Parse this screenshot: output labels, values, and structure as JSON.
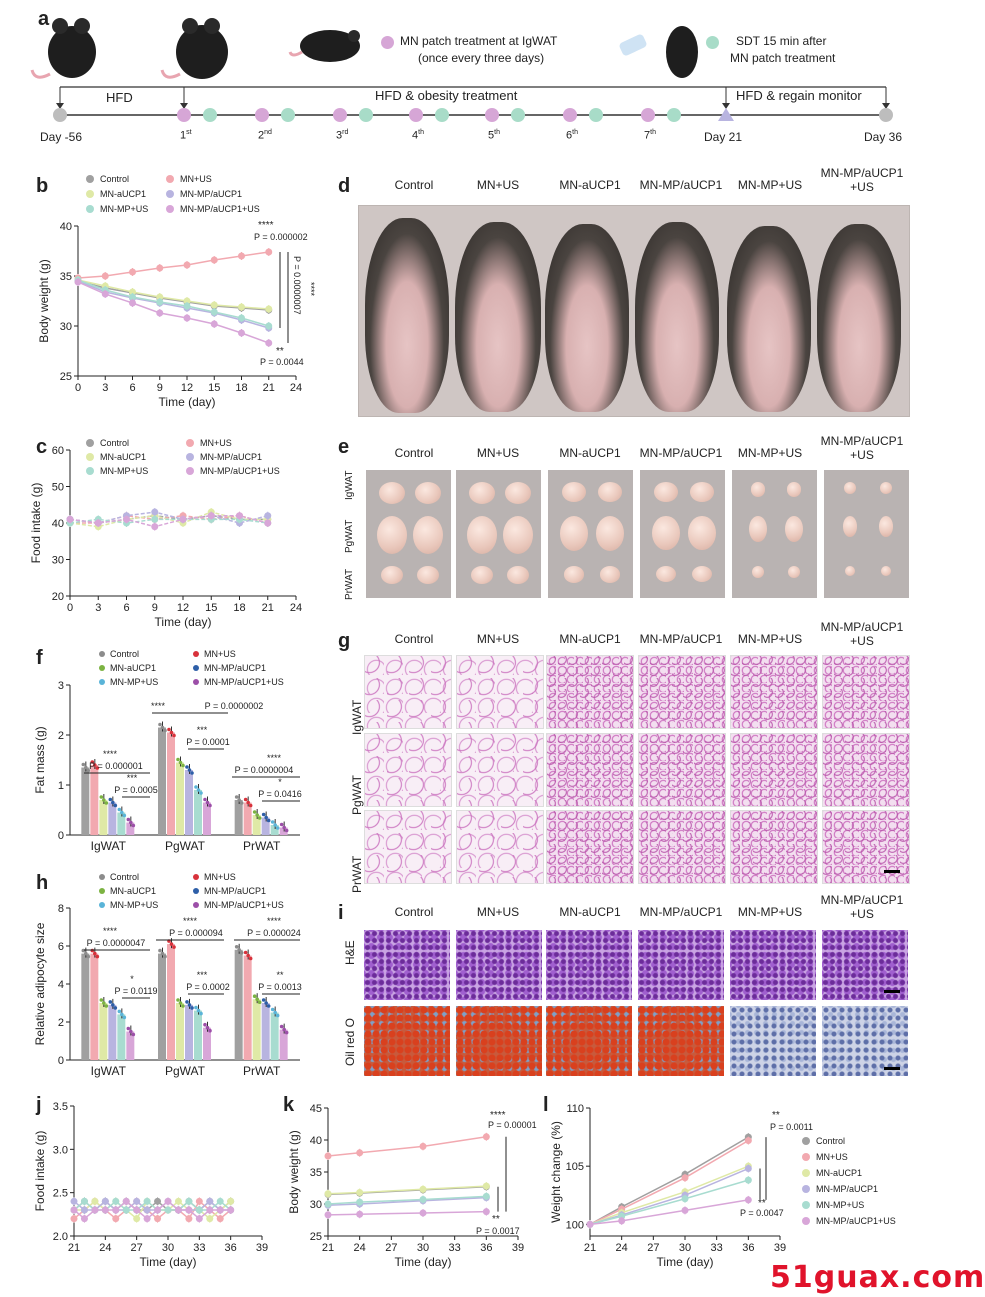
{
  "panels": {
    "a": "a",
    "b": "b",
    "c": "c",
    "d": "d",
    "e": "e",
    "f": "f",
    "g": "g",
    "h": "h",
    "i": "i",
    "j": "j",
    "k": "k",
    "l": "l"
  },
  "timeline": {
    "legend_patch": "MN patch treatment at IgWAT",
    "legend_patch2": "(once every three days)",
    "legend_sdt": "SDT 15 min after",
    "legend_sdt2": "MN patch treatment",
    "hfd": "HFD",
    "treatment": "HFD & obesity treatment",
    "regain": "HFD & regain monitor",
    "day_start": "Day -56",
    "day21": "Day 21",
    "day36": "Day 36",
    "doses": [
      "1",
      "2",
      "3",
      "4",
      "5",
      "6",
      "7"
    ],
    "dose_sups": [
      "st",
      "nd",
      "rd",
      "th",
      "th",
      "th",
      "th"
    ],
    "colors": {
      "patch": "#d6a6d6",
      "sdt": "#a8dcc8",
      "gray": "#bdbdbd"
    }
  },
  "groups": [
    "Control",
    "MN+US",
    "MN-aUCP1",
    "MN-MP/aUCP1",
    "MN-MP+US",
    "MN-MP/aUCP1+US"
  ],
  "group_labels_top": [
    "Control",
    "MN+US",
    "MN-aUCP1",
    "MN-MP/aUCP1",
    "MN-MP+US",
    "MN-MP/aUCP1"
  ],
  "group_label_last_line2": "+US",
  "colors": {
    "Control": "#a0a0a0",
    "MN+US": "#f2a9b0",
    "MN-aUCP1": "#dfe9a6",
    "MN-MP/aUCP1": "#b8b4e0",
    "MN-MP+US": "#a8dcd0",
    "MN-MP/aUCP1+US": "#d8a6d8"
  },
  "bar_colors": {
    "Control": "#8c8c8c",
    "MN+US": "#d8323b",
    "MN-aUCP1": "#7cb342",
    "MN-MP/aUCP1": "#2e5fa8",
    "MN-MP+US": "#5ab4d8",
    "MN-MP/aUCP1+US": "#9c4fa8"
  },
  "fat_labels": [
    "IgWAT",
    "PgWAT",
    "PrWAT"
  ],
  "scalebar_note": "",
  "stain_labels": [
    "H&E",
    "Oil red O"
  ],
  "chart_data": [
    {
      "id": "b",
      "type": "line",
      "xlabel": "Time (day)",
      "ylabel": "Body weight (g)",
      "x": [
        0,
        3,
        6,
        9,
        12,
        15,
        18,
        21
      ],
      "xticks": [
        0,
        3,
        6,
        9,
        12,
        15,
        18,
        21,
        24
      ],
      "yticks": [
        25,
        30,
        35,
        40
      ],
      "ylim": [
        25,
        40
      ],
      "xlim": [
        0,
        24
      ],
      "series": [
        {
          "name": "Control",
          "values": [
            34.5,
            33.8,
            33.3,
            32.8,
            32.4,
            32.0,
            31.8,
            31.6
          ]
        },
        {
          "name": "MN+US",
          "values": [
            34.8,
            35.0,
            35.4,
            35.8,
            36.1,
            36.6,
            37.0,
            37.4
          ]
        },
        {
          "name": "MN-aUCP1",
          "values": [
            34.6,
            34.0,
            33.4,
            32.9,
            32.5,
            32.1,
            31.9,
            31.7
          ]
        },
        {
          "name": "MN-MP/aUCP1",
          "values": [
            34.5,
            33.4,
            32.8,
            32.3,
            31.8,
            31.3,
            30.6,
            29.8
          ]
        },
        {
          "name": "MN-MP+US",
          "values": [
            34.6,
            33.6,
            32.9,
            32.4,
            32.0,
            31.4,
            30.8,
            30.0
          ]
        },
        {
          "name": "MN-MP/aUCP1+US",
          "values": [
            34.4,
            33.2,
            32.3,
            31.3,
            30.8,
            30.2,
            29.3,
            28.3
          ]
        }
      ],
      "annotations": [
        "****",
        "P = 0.000002",
        "P = 0.0000007",
        "****",
        "**",
        "P = 0.0044"
      ]
    },
    {
      "id": "c",
      "type": "line",
      "xlabel": "Time (day)",
      "ylabel": "Food intake (g)",
      "x": [
        0,
        3,
        6,
        9,
        12,
        15,
        18,
        21
      ],
      "xticks": [
        0,
        3,
        6,
        9,
        12,
        15,
        18,
        21,
        24
      ],
      "yticks": [
        20,
        30,
        40,
        50,
        60
      ],
      "ylim": [
        20,
        60
      ],
      "xlim": [
        0,
        24
      ],
      "series": [
        {
          "name": "Control",
          "values": [
            41,
            40,
            41,
            42,
            41,
            42,
            41,
            41
          ]
        },
        {
          "name": "MN+US",
          "values": [
            40,
            40,
            42,
            41,
            42,
            41,
            42,
            40
          ]
        },
        {
          "name": "MN-aUCP1",
          "values": [
            40,
            39,
            41,
            42,
            40,
            43,
            41,
            41
          ]
        },
        {
          "name": "MN-MP/aUCP1",
          "values": [
            41,
            40,
            42,
            43,
            41,
            42,
            40,
            42
          ]
        },
        {
          "name": "MN-MP+US",
          "values": [
            40,
            41,
            40,
            41,
            41,
            41,
            41,
            40
          ]
        },
        {
          "name": "MN-MP/aUCP1+US",
          "values": [
            41,
            40,
            41,
            39,
            41,
            42,
            42,
            40
          ]
        }
      ]
    },
    {
      "id": "f",
      "type": "bar",
      "ylabel": "Fat mass (g)",
      "categories": [
        "IgWAT",
        "PgWAT",
        "PrWAT"
      ],
      "yticks": [
        0,
        1,
        2,
        3
      ],
      "ylim": [
        0,
        3
      ],
      "series": [
        {
          "name": "Control",
          "values": [
            1.35,
            2.15,
            0.7
          ]
        },
        {
          "name": "MN+US",
          "values": [
            1.4,
            2.05,
            0.65
          ]
        },
        {
          "name": "MN-aUCP1",
          "values": [
            0.7,
            1.45,
            0.4
          ]
        },
        {
          "name": "MN-MP/aUCP1",
          "values": [
            0.65,
            1.3,
            0.35
          ]
        },
        {
          "name": "MN-MP+US",
          "values": [
            0.45,
            0.9,
            0.2
          ]
        },
        {
          "name": "MN-MP/aUCP1+US",
          "values": [
            0.25,
            0.65,
            0.15
          ]
        }
      ],
      "annotations": [
        "****",
        "P = 0.000001",
        "***",
        "P = 0.0005",
        "****",
        "P = 0.0000002",
        "***",
        "P = 0.0001",
        "****",
        "P = 0.0000004",
        "*",
        "P = 0.0416"
      ]
    },
    {
      "id": "h",
      "type": "bar",
      "ylabel": "Relative adipocyte size",
      "categories": [
        "IgWAT",
        "PgWAT",
        "PrWAT"
      ],
      "yticks": [
        0,
        2,
        4,
        6,
        8
      ],
      "ylim": [
        0,
        8
      ],
      "series": [
        {
          "name": "Control",
          "values": [
            5.6,
            5.6,
            5.8
          ]
        },
        {
          "name": "MN+US",
          "values": [
            5.6,
            6.1,
            5.5
          ]
        },
        {
          "name": "MN-aUCP1",
          "values": [
            3.0,
            3.0,
            3.2
          ]
        },
        {
          "name": "MN-MP/aUCP1",
          "values": [
            2.9,
            2.9,
            3.0
          ]
        },
        {
          "name": "MN-MP+US",
          "values": [
            2.4,
            2.6,
            2.5
          ]
        },
        {
          "name": "MN-MP/aUCP1+US",
          "values": [
            1.5,
            1.7,
            1.6
          ]
        }
      ],
      "annotations": [
        "****",
        "P = 0.0000047",
        "*",
        "P = 0.0119",
        "****",
        "P = 0.000094",
        "***",
        "P = 0.0002",
        "****",
        "P = 0.000024",
        "**",
        "P = 0.0013"
      ]
    },
    {
      "id": "j",
      "type": "line",
      "xlabel": "Time (day)",
      "ylabel": "Food intake (g)",
      "x": [
        21,
        22,
        23,
        24,
        25,
        26,
        27,
        28,
        29,
        30,
        31,
        32,
        33,
        34,
        35,
        36
      ],
      "xticks": [
        21,
        24,
        27,
        30,
        33,
        36,
        39
      ],
      "yticks": [
        2.0,
        2.5,
        3.0,
        3.5
      ],
      "yticklabels": [
        "2.0",
        "2.5",
        "3.0",
        "3.5"
      ],
      "ylim": [
        2.0,
        3.5
      ],
      "xlim": [
        21,
        39
      ],
      "series": [
        {
          "name": "Control",
          "values": [
            2.3,
            2.4,
            2.3,
            2.4,
            2.3,
            2.4,
            2.3,
            2.3,
            2.4,
            2.3,
            2.3,
            2.4,
            2.3,
            2.4,
            2.3,
            2.4
          ]
        },
        {
          "name": "MN+US",
          "values": [
            2.2,
            2.3,
            2.4,
            2.3,
            2.2,
            2.3,
            2.4,
            2.3,
            2.2,
            2.3,
            2.3,
            2.2,
            2.4,
            2.3,
            2.2,
            2.3
          ]
        },
        {
          "name": "MN-aUCP1",
          "values": [
            2.3,
            2.3,
            2.4,
            2.3,
            2.4,
            2.3,
            2.2,
            2.4,
            2.3,
            2.3,
            2.4,
            2.3,
            2.3,
            2.2,
            2.3,
            2.4
          ]
        },
        {
          "name": "MN-MP/aUCP1",
          "values": [
            2.4,
            2.3,
            2.3,
            2.4,
            2.3,
            2.3,
            2.4,
            2.3,
            2.3,
            2.4,
            2.3,
            2.3,
            2.3,
            2.4,
            2.3,
            2.3
          ]
        },
        {
          "name": "MN-MP+US",
          "values": [
            2.3,
            2.4,
            2.3,
            2.3,
            2.4,
            2.3,
            2.3,
            2.4,
            2.3,
            2.3,
            2.3,
            2.4,
            2.3,
            2.3,
            2.4,
            2.3
          ]
        },
        {
          "name": "MN-MP/aUCP1+US",
          "values": [
            2.3,
            2.2,
            2.3,
            2.3,
            2.3,
            2.4,
            2.3,
            2.2,
            2.3,
            2.4,
            2.3,
            2.3,
            2.2,
            2.3,
            2.3,
            2.3
          ]
        }
      ]
    },
    {
      "id": "k",
      "type": "line",
      "xlabel": "Time (day)",
      "ylabel": "Body weight (g)",
      "x": [
        21,
        24,
        30,
        36
      ],
      "xticks": [
        21,
        24,
        27,
        30,
        33,
        36,
        39
      ],
      "yticks": [
        25,
        30,
        35,
        40,
        45
      ],
      "ylim": [
        25,
        45
      ],
      "xlim": [
        21,
        39
      ],
      "series": [
        {
          "name": "Control",
          "values": [
            31.5,
            31.7,
            32.2,
            32.7
          ]
        },
        {
          "name": "MN+US",
          "values": [
            37.5,
            38.0,
            39.0,
            40.5
          ]
        },
        {
          "name": "MN-aUCP1",
          "values": [
            31.6,
            31.8,
            32.3,
            32.8
          ]
        },
        {
          "name": "MN-MP/aUCP1",
          "values": [
            29.8,
            30.0,
            30.5,
            31.0
          ]
        },
        {
          "name": "MN-MP+US",
          "values": [
            30.0,
            30.3,
            30.7,
            31.2
          ]
        },
        {
          "name": "MN-MP/aUCP1+US",
          "values": [
            28.3,
            28.4,
            28.6,
            28.8
          ]
        }
      ],
      "annotations": [
        "****",
        "P = 0.00001",
        "**",
        "P = 0.0017"
      ]
    },
    {
      "id": "l",
      "type": "line",
      "xlabel": "Time (day)",
      "ylabel": "Weight change (%)",
      "x": [
        21,
        24,
        30,
        36
      ],
      "xticks": [
        21,
        24,
        27,
        30,
        33,
        36,
        39
      ],
      "yticks": [
        100,
        105,
        110
      ],
      "ylim": [
        99,
        110
      ],
      "xlim": [
        21,
        39
      ],
      "series": [
        {
          "name": "Control",
          "values": [
            100,
            101.5,
            104.3,
            107.5
          ]
        },
        {
          "name": "MN+US",
          "values": [
            100,
            101.3,
            104.0,
            107.2
          ]
        },
        {
          "name": "MN-aUCP1",
          "values": [
            100,
            101.0,
            102.8,
            105.0
          ]
        },
        {
          "name": "MN-MP/aUCP1",
          "values": [
            100,
            100.8,
            102.5,
            104.8
          ]
        },
        {
          "name": "MN-MP+US",
          "values": [
            100,
            100.7,
            102.2,
            103.8
          ]
        },
        {
          "name": "MN-MP/aUCP1+US",
          "values": [
            100,
            100.3,
            101.2,
            102.1
          ]
        }
      ],
      "annotations": [
        "**",
        "P = 0.0011",
        "**",
        "P = 0.0047"
      ]
    }
  ],
  "watermark": "51guax.com"
}
